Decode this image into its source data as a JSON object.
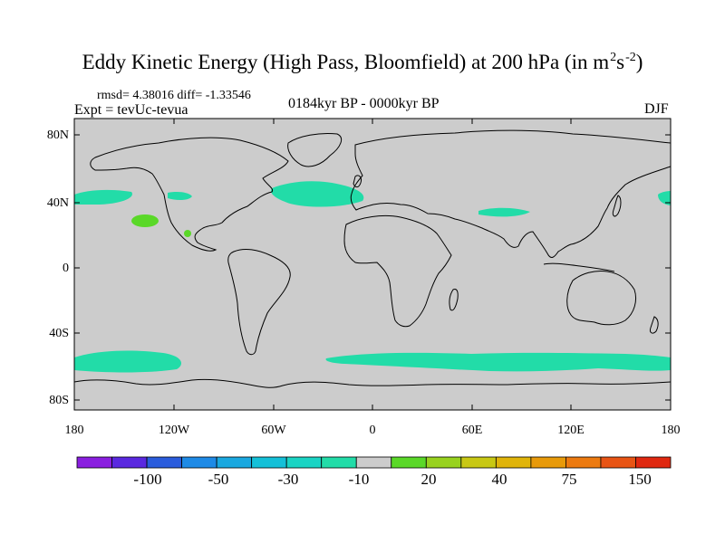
{
  "title": {
    "main": "Eddy Kinetic Energy (High Pass, Bloomfield) at 200 hPa (in m",
    "sup1": "2",
    "mid": "s",
    "sup2": "-2",
    "tail": ")"
  },
  "stats": "rmsd= 4.38016 diff= -1.33546",
  "expt": "Expt = tevUc-tevua",
  "period": "0184kyr BP - 0000kyr BP",
  "season": "DJF",
  "lat_labels": [
    "80N",
    "40N",
    "0",
    "40S",
    "80S"
  ],
  "lon_labels": [
    "180",
    "120W",
    "60W",
    "0",
    "60E",
    "120E",
    "180"
  ],
  "colorbar": {
    "labels": [
      "-100",
      "-50",
      "-30",
      "-10",
      "20",
      "40",
      "75",
      "150"
    ],
    "colors": [
      "#8a1ee0",
      "#5a28e0",
      "#2a5cdc",
      "#1e8ae6",
      "#1aa8e0",
      "#14c0d8",
      "#1ad4c4",
      "#22dca8",
      "#cccccc",
      "#5ad828",
      "#98d21e",
      "#c8c814",
      "#e0b40a",
      "#e89a0a",
      "#ec7a10",
      "#e85414",
      "#e02810"
    ]
  },
  "map": {
    "background_color": "#cccccc",
    "positive_color": "#5ad828",
    "negative_color": "#22dca8"
  }
}
